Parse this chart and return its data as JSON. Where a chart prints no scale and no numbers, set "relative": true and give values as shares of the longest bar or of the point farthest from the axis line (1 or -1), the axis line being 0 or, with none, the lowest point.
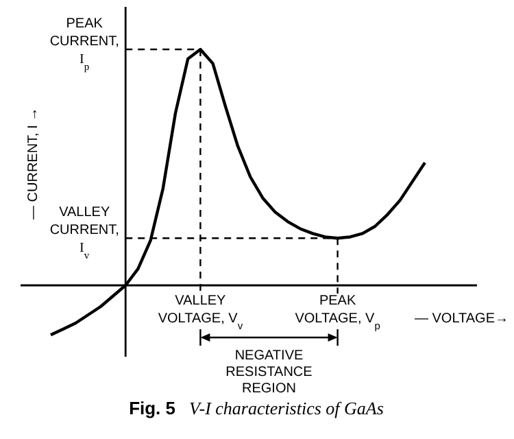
{
  "chart_data": {
    "type": "line",
    "relative": true,
    "title": "Fig. 5 V-I characteristics of GaAs",
    "xlabel": "— VOLTAGE→",
    "ylabel": "— CURRENT, I →",
    "categories": [
      null,
      null,
      null,
      null,
      null,
      null,
      null,
      null,
      null,
      null,
      null,
      null,
      null,
      null,
      null,
      null,
      null,
      null,
      null,
      null,
      null,
      null,
      null,
      null,
      null,
      null,
      null,
      null,
      null,
      null,
      null
    ],
    "series": [
      {
        "color": "#000000",
        "values": [
          -0.21,
          -0.185,
          -0.16,
          -0.125,
          -0.09,
          -0.045,
          0,
          0.07,
          0.19,
          0.41,
          0.73,
          0.96,
          1,
          0.94,
          0.76,
          0.59,
          0.46,
          0.37,
          0.31,
          0.27,
          0.24,
          0.22,
          0.205,
          0.2,
          0.205,
          0.22,
          0.25,
          0.3,
          0.36,
          0.44,
          0.52
        ]
      }
    ],
    "annotations": [
      "PEAK CURRENT, I$_{p}$",
      "VALLEY CURRENT, I$_{v}$",
      "VALLEY VOLTAGE, V$_{v}$",
      "PEAK VOLTAGE, V$_{p}$",
      "NEGATIVE RESISTANCE REGION"
    ]
  }
}
